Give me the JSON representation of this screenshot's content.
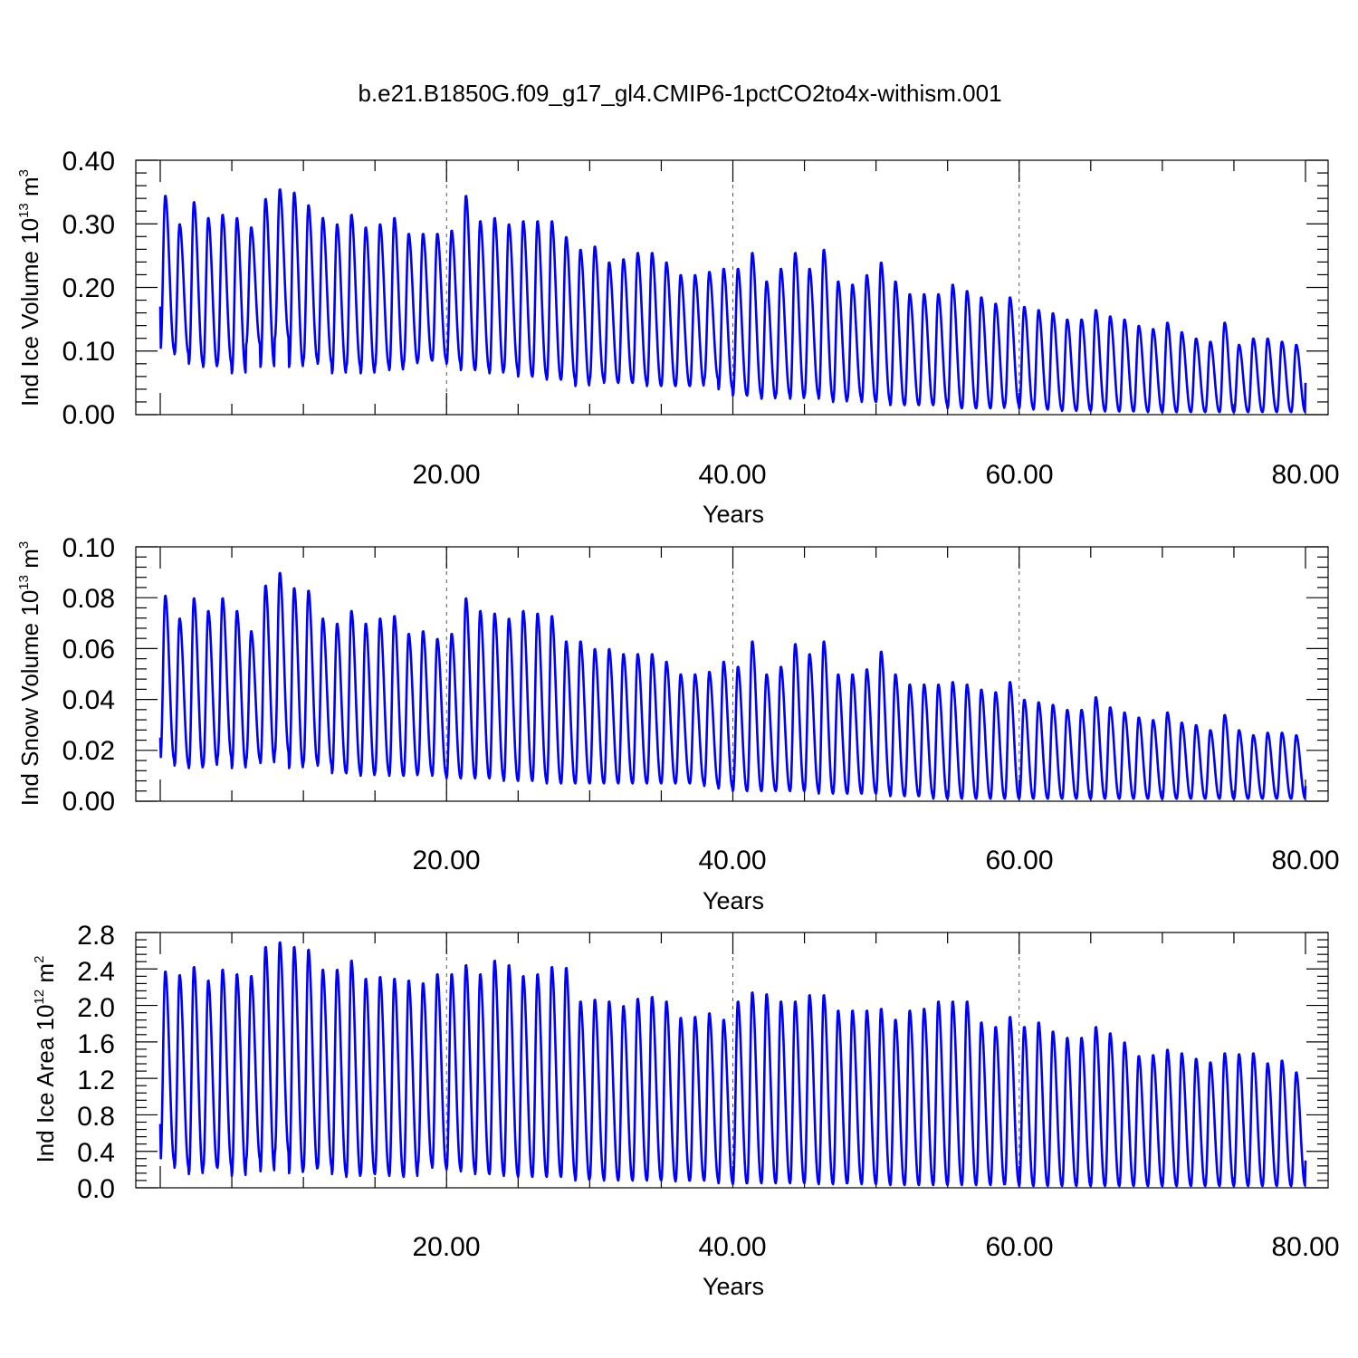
{
  "title": "b.e21.B1850G.f09_g17_gl4.CMIP6-1pctCO2to4x-withism.001",
  "colors": {
    "series": "#0000ff",
    "axes": "#000000",
    "grid": "#555555"
  },
  "chart_data": [
    {
      "type": "line",
      "ylabel_main": "Ind Ice Volume 10",
      "ylabel_exp": "13",
      "ylabel_unit": "m",
      "ylabel_unit_exp": "3",
      "xlabel": "Years",
      "xlim": [
        0,
        80
      ],
      "ylim": [
        0,
        0.4
      ],
      "yticks": [
        "0.00",
        "0.10",
        "0.20",
        "0.30",
        "0.40"
      ],
      "xticks": [
        "20.00",
        "40.00",
        "60.00",
        "80.00"
      ],
      "grid": "dashed vertical at 20, 40, 60",
      "series": [
        {
          "peaks": [
            0.345,
            0.3,
            0.335,
            0.31,
            0.315,
            0.31,
            0.295,
            0.34,
            0.355,
            0.35,
            0.33,
            0.31,
            0.3,
            0.315,
            0.295,
            0.3,
            0.31,
            0.285,
            0.285,
            0.285,
            0.29,
            0.345,
            0.305,
            0.31,
            0.3,
            0.305,
            0.305,
            0.305,
            0.28,
            0.26,
            0.265,
            0.24,
            0.245,
            0.255,
            0.255,
            0.24,
            0.22,
            0.22,
            0.225,
            0.23,
            0.23,
            0.255,
            0.21,
            0.23,
            0.255,
            0.23,
            0.26,
            0.21,
            0.205,
            0.22,
            0.24,
            0.21,
            0.19,
            0.19,
            0.19,
            0.205,
            0.195,
            0.185,
            0.175,
            0.185,
            0.17,
            0.165,
            0.16,
            0.15,
            0.15,
            0.165,
            0.155,
            0.15,
            0.14,
            0.135,
            0.145,
            0.13,
            0.12,
            0.115,
            0.145,
            0.11,
            0.12,
            0.12,
            0.115,
            0.11
          ],
          "troughs": [
            0.1,
            0.095,
            0.08,
            0.075,
            0.08,
            0.065,
            0.11,
            0.075,
            0.12,
            0.075,
            0.085,
            0.08,
            0.065,
            0.075,
            0.065,
            0.075,
            0.07,
            0.08,
            0.085,
            0.085,
            0.08,
            0.07,
            0.07,
            0.065,
            0.07,
            0.06,
            0.06,
            0.055,
            0.055,
            0.045,
            0.055,
            0.05,
            0.05,
            0.05,
            0.045,
            0.045,
            0.045,
            0.045,
            0.055,
            0.04,
            0.03,
            0.03,
            0.025,
            0.03,
            0.025,
            0.03,
            0.025,
            0.02,
            0.025,
            0.02,
            0.02,
            0.015,
            0.015,
            0.015,
            0.015,
            0.01,
            0.01,
            0.01,
            0.01,
            0.015,
            0.01,
            0.008,
            0.008,
            0.006,
            0.006,
            0.006,
            0.005,
            0.005,
            0.005,
            0.004,
            0.004,
            0.004,
            0.004,
            0.004,
            0.004,
            0.004,
            0.004,
            0.004,
            0.004,
            0.004
          ],
          "start": 0.17,
          "end": 0.05
        }
      ]
    },
    {
      "type": "line",
      "ylabel_main": "Ind Snow Volume 10",
      "ylabel_exp": "13",
      "ylabel_unit": "m",
      "ylabel_unit_exp": "3",
      "xlabel": "Years",
      "xlim": [
        0,
        80
      ],
      "ylim": [
        0,
        0.1
      ],
      "yticks": [
        "0.00",
        "0.02",
        "0.04",
        "0.06",
        "0.08",
        "0.10"
      ],
      "xticks": [
        "20.00",
        "40.00",
        "60.00",
        "80.00"
      ],
      "grid": "dashed vertical at 20, 40, 60",
      "series": [
        {
          "peaks": [
            0.081,
            0.072,
            0.08,
            0.075,
            0.08,
            0.075,
            0.067,
            0.085,
            0.09,
            0.084,
            0.083,
            0.072,
            0.07,
            0.075,
            0.07,
            0.072,
            0.073,
            0.066,
            0.067,
            0.064,
            0.066,
            0.08,
            0.075,
            0.074,
            0.072,
            0.075,
            0.074,
            0.073,
            0.063,
            0.063,
            0.06,
            0.06,
            0.058,
            0.058,
            0.058,
            0.055,
            0.05,
            0.05,
            0.051,
            0.055,
            0.053,
            0.063,
            0.05,
            0.053,
            0.062,
            0.058,
            0.063,
            0.05,
            0.05,
            0.052,
            0.059,
            0.05,
            0.046,
            0.046,
            0.046,
            0.047,
            0.046,
            0.044,
            0.043,
            0.047,
            0.04,
            0.039,
            0.038,
            0.036,
            0.036,
            0.041,
            0.037,
            0.035,
            0.033,
            0.032,
            0.035,
            0.031,
            0.03,
            0.028,
            0.034,
            0.028,
            0.026,
            0.027,
            0.027,
            0.026
          ],
          "troughs": [
            0.016,
            0.014,
            0.013,
            0.014,
            0.017,
            0.013,
            0.016,
            0.015,
            0.019,
            0.013,
            0.015,
            0.014,
            0.011,
            0.011,
            0.01,
            0.011,
            0.01,
            0.01,
            0.011,
            0.01,
            0.009,
            0.009,
            0.009,
            0.009,
            0.008,
            0.008,
            0.008,
            0.007,
            0.007,
            0.007,
            0.007,
            0.007,
            0.007,
            0.007,
            0.007,
            0.007,
            0.007,
            0.007,
            0.006,
            0.005,
            0.004,
            0.004,
            0.004,
            0.004,
            0.004,
            0.004,
            0.003,
            0.003,
            0.003,
            0.003,
            0.003,
            0.002,
            0.002,
            0.002,
            0.001,
            0.001,
            0.001,
            0.001,
            0.001,
            0.001,
            0.001,
            0.001,
            0.001,
            0.001,
            0.001,
            0.001,
            0.001,
            0.001,
            0.001,
            0.001,
            0.001,
            0.001,
            0.001,
            0.001,
            0.001,
            0.001,
            0.001,
            0.001,
            0.001,
            0.001
          ],
          "start": 0.025,
          "end": 0.006
        }
      ]
    },
    {
      "type": "line",
      "ylabel_main": "Ind Ice Area 10",
      "ylabel_exp": "12",
      "ylabel_unit": "m",
      "ylabel_unit_exp": "2",
      "xlabel": "Years",
      "xlim": [
        0,
        80
      ],
      "ylim": [
        0,
        2.8
      ],
      "yticks": [
        "0.0",
        "0.4",
        "0.8",
        "1.2",
        "1.6",
        "2.0",
        "2.4",
        "2.8"
      ],
      "xticks": [
        "20.00",
        "40.00",
        "60.00",
        "80.00"
      ],
      "grid": "dashed vertical at 20, 40, 60",
      "series": [
        {
          "peaks": [
            2.38,
            2.34,
            2.43,
            2.28,
            2.4,
            2.35,
            2.33,
            2.65,
            2.7,
            2.65,
            2.62,
            2.4,
            2.4,
            2.5,
            2.3,
            2.32,
            2.3,
            2.28,
            2.25,
            2.35,
            2.35,
            2.45,
            2.35,
            2.5,
            2.45,
            2.33,
            2.35,
            2.43,
            2.42,
            2.05,
            2.07,
            2.05,
            2.0,
            2.08,
            2.1,
            2.05,
            1.87,
            1.88,
            1.92,
            1.85,
            2.05,
            2.15,
            2.13,
            2.05,
            2.05,
            2.12,
            2.12,
            1.95,
            1.95,
            1.95,
            1.97,
            1.85,
            1.95,
            1.97,
            2.05,
            2.05,
            2.05,
            1.82,
            1.77,
            1.88,
            1.77,
            1.82,
            1.72,
            1.65,
            1.65,
            1.77,
            1.7,
            1.6,
            1.45,
            1.46,
            1.52,
            1.48,
            1.42,
            1.38,
            1.48,
            1.47,
            1.48,
            1.37,
            1.4,
            1.27
          ],
          "troughs": [
            0.28,
            0.22,
            0.15,
            0.22,
            0.22,
            0.13,
            0.3,
            0.18,
            0.38,
            0.16,
            0.2,
            0.22,
            0.15,
            0.12,
            0.15,
            0.15,
            0.13,
            0.12,
            0.25,
            0.22,
            0.2,
            0.18,
            0.15,
            0.15,
            0.13,
            0.12,
            0.12,
            0.12,
            0.12,
            0.08,
            0.1,
            0.08,
            0.08,
            0.08,
            0.08,
            0.08,
            0.07,
            0.08,
            0.08,
            0.05,
            0.04,
            0.05,
            0.05,
            0.05,
            0.05,
            0.05,
            0.04,
            0.04,
            0.05,
            0.04,
            0.04,
            0.03,
            0.03,
            0.03,
            0.03,
            0.03,
            0.03,
            0.03,
            0.03,
            0.04,
            0.02,
            0.02,
            0.02,
            0.02,
            0.02,
            0.02,
            0.02,
            0.02,
            0.02,
            0.02,
            0.02,
            0.02,
            0.02,
            0.02,
            0.02,
            0.02,
            0.02,
            0.02,
            0.02,
            0.02
          ],
          "start": 0.7,
          "end": 0.3
        }
      ]
    }
  ]
}
